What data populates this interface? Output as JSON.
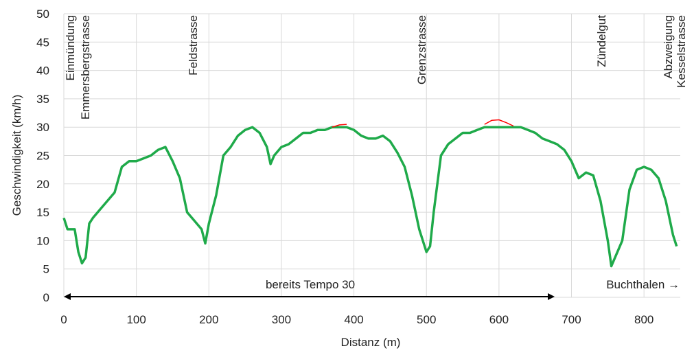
{
  "chart_data": {
    "type": "line",
    "y_label": "Geschwindigkeit (km/h)",
    "x_label": "Distanz (m)",
    "x": [
      0,
      5,
      10,
      15,
      20,
      25,
      30,
      35,
      40,
      50,
      60,
      70,
      80,
      90,
      100,
      110,
      120,
      130,
      140,
      150,
      160,
      170,
      180,
      190,
      195,
      200,
      210,
      220,
      230,
      240,
      250,
      260,
      270,
      280,
      285,
      290,
      300,
      310,
      320,
      330,
      340,
      350,
      360,
      370,
      380,
      390,
      400,
      410,
      420,
      430,
      440,
      450,
      460,
      470,
      480,
      490,
      500,
      505,
      510,
      520,
      530,
      540,
      550,
      560,
      570,
      580,
      590,
      600,
      610,
      620,
      630,
      640,
      650,
      660,
      670,
      680,
      690,
      700,
      710,
      720,
      730,
      740,
      750,
      755,
      760,
      770,
      780,
      790,
      800,
      810,
      820,
      830,
      840,
      845
    ],
    "series": [
      {
        "color": "#ff0000",
        "values": [
          null,
          null,
          null,
          null,
          null,
          null,
          null,
          null,
          null,
          null,
          null,
          null,
          null,
          null,
          null,
          null,
          null,
          null,
          null,
          null,
          null,
          null,
          null,
          null,
          null,
          null,
          null,
          null,
          null,
          null,
          null,
          null,
          null,
          null,
          null,
          null,
          null,
          null,
          null,
          null,
          null,
          null,
          null,
          30,
          30.4,
          30.5,
          null,
          null,
          null,
          null,
          null,
          null,
          null,
          null,
          null,
          null,
          null,
          null,
          null,
          null,
          null,
          null,
          null,
          null,
          null,
          30.5,
          31.2,
          31.3,
          30.8,
          30.2,
          null,
          null,
          null,
          null,
          null,
          null,
          null,
          null,
          null,
          null,
          null,
          null,
          null,
          null,
          null,
          null,
          null,
          null,
          null,
          null,
          null,
          null,
          null,
          null
        ]
      },
      {
        "color": "#1faa4a",
        "values": [
          14,
          12,
          12,
          12,
          8,
          6,
          7,
          13,
          14,
          15.5,
          17,
          18.5,
          23,
          24,
          24,
          24.5,
          25,
          26,
          26.5,
          24,
          21,
          15,
          13.5,
          12,
          9.5,
          13,
          18,
          25,
          26.5,
          28.5,
          29.5,
          30,
          29,
          26.5,
          23.5,
          25,
          26.5,
          27,
          28,
          29,
          29,
          29.5,
          29.5,
          30,
          30,
          30,
          29.5,
          28.5,
          28,
          28,
          28.5,
          27.5,
          25.5,
          23,
          18,
          12,
          8,
          9,
          15,
          25,
          27,
          28,
          29,
          29,
          29.5,
          30,
          30,
          30,
          30,
          30,
          30,
          29.5,
          29,
          28,
          27.5,
          27,
          26,
          24,
          21,
          22,
          21.5,
          17,
          10,
          5.5,
          7,
          10,
          19,
          22.5,
          23,
          22.5,
          21,
          17,
          11,
          9
        ]
      }
    ],
    "xlim": [
      0,
      850
    ],
    "xticks": [
      0,
      100,
      200,
      300,
      400,
      500,
      600,
      700,
      800
    ],
    "ylim": [
      0,
      50
    ],
    "yticks": [
      0,
      5,
      10,
      15,
      20,
      25,
      30,
      35,
      40,
      45,
      50
    ],
    "grid": true,
    "annotations": [
      "Einmündung",
      "Emmersbergstrasse",
      "Feldstrasse",
      "Grenzstrasse",
      "Zündelgut",
      "Abzweigung",
      "Kesselstrasse"
    ],
    "arrow_label": "bereits Tempo 30",
    "direction_label": "Buchthalen →"
  }
}
